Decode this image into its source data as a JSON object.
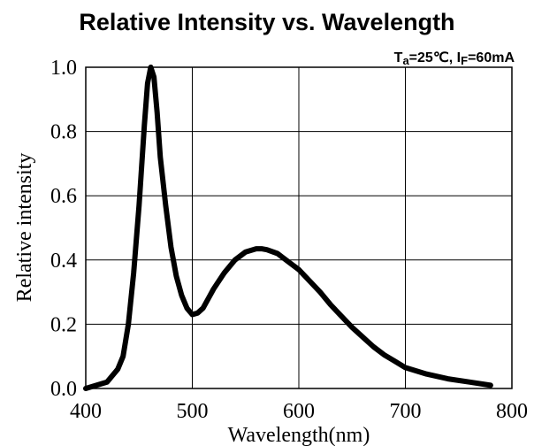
{
  "chart_data": {
    "type": "line",
    "title": "Relative Intensity vs. Wavelength",
    "conditions": {
      "ta_main": "T",
      "ta_sub": "a",
      "ta_value": "=25℃, ",
      "if_main": "I",
      "if_sub": "F",
      "if_value": "=60mA"
    },
    "xlabel": "Wavelength(nm)",
    "ylabel": "Relative intensity",
    "xlim": [
      400,
      800
    ],
    "ylim": [
      0,
      1.0
    ],
    "xticks": [
      "400",
      "500",
      "600",
      "700",
      "800"
    ],
    "yticks": [
      "0.0",
      "0.2",
      "0.4",
      "0.6",
      "0.8",
      "1.0"
    ],
    "grid": true,
    "series": [
      {
        "x": [
          400,
          410,
          420,
          430,
          435,
          440,
          445,
          450,
          455,
          458,
          461,
          464,
          467,
          470,
          475,
          480,
          485,
          490,
          495,
          500,
          505,
          510,
          515,
          520,
          530,
          540,
          550,
          560,
          565,
          570,
          580,
          590,
          600,
          610,
          620,
          630,
          640,
          650,
          660,
          670,
          680,
          690,
          700,
          720,
          740,
          760,
          780
        ],
        "y": [
          0.0,
          0.01,
          0.02,
          0.06,
          0.1,
          0.2,
          0.36,
          0.57,
          0.82,
          0.95,
          1.0,
          0.97,
          0.86,
          0.72,
          0.57,
          0.44,
          0.35,
          0.29,
          0.25,
          0.23,
          0.235,
          0.25,
          0.28,
          0.31,
          0.36,
          0.4,
          0.425,
          0.435,
          0.435,
          0.432,
          0.42,
          0.395,
          0.37,
          0.335,
          0.3,
          0.26,
          0.225,
          0.19,
          0.16,
          0.13,
          0.105,
          0.085,
          0.065,
          0.045,
          0.03,
          0.02,
          0.01
        ]
      }
    ]
  }
}
